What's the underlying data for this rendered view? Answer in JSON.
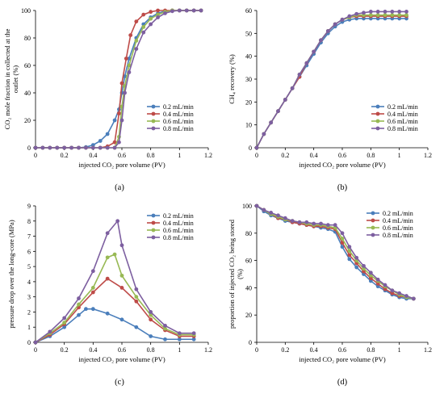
{
  "figure": {
    "background": "#ffffff"
  },
  "series_colors": [
    "#4a7ebb",
    "#be4b48",
    "#98b954",
    "#7d5fa0"
  ],
  "chart_data": [
    {
      "id": "a",
      "type": "line",
      "caption": "(a)",
      "xlabel": "injected CO₂ pore volume (PV)",
      "ylabel_lines": [
        "CO₂ mole fraction in collected at the",
        "outlet (%)"
      ],
      "xlim": [
        0,
        1.2
      ],
      "ylim": [
        0,
        100
      ],
      "xticks": [
        "0",
        "0.2",
        "0.4",
        "0.6",
        "0.8",
        "1",
        "1.2"
      ],
      "yticks": [
        "0",
        "20",
        "40",
        "60",
        "80",
        "100"
      ],
      "grid": false,
      "legend_position": "center-right",
      "series": [
        {
          "name": "0.2 mL/min",
          "x": [
            0,
            0.05,
            0.1,
            0.15,
            0.2,
            0.25,
            0.3,
            0.35,
            0.4,
            0.45,
            0.5,
            0.55,
            0.58,
            0.6,
            0.62,
            0.65,
            0.7,
            0.75,
            0.8,
            0.85,
            0.9,
            0.95,
            1.0,
            1.05,
            1.1,
            1.15
          ],
          "y": [
            0,
            0,
            0,
            0,
            0,
            0,
            0,
            0.5,
            2,
            5,
            10,
            20,
            28,
            40,
            52,
            65,
            80,
            90,
            95,
            98,
            99.5,
            100,
            100,
            100,
            100,
            100
          ]
        },
        {
          "name": "0.4 mL/min",
          "x": [
            0,
            0.05,
            0.1,
            0.15,
            0.2,
            0.25,
            0.3,
            0.35,
            0.4,
            0.45,
            0.5,
            0.55,
            0.58,
            0.6,
            0.63,
            0.66,
            0.7,
            0.75,
            0.8,
            0.85,
            0.9,
            0.95,
            1.0,
            1.05,
            1.1,
            1.15
          ],
          "y": [
            0,
            0,
            0,
            0,
            0,
            0,
            0,
            0,
            0,
            0,
            1,
            4,
            25,
            47,
            65,
            82,
            92,
            97,
            99,
            100,
            100,
            100,
            100,
            100,
            100,
            100
          ]
        },
        {
          "name": "0.6 mL/min",
          "x": [
            0,
            0.05,
            0.1,
            0.15,
            0.2,
            0.25,
            0.3,
            0.35,
            0.4,
            0.45,
            0.5,
            0.55,
            0.58,
            0.6,
            0.62,
            0.65,
            0.7,
            0.75,
            0.8,
            0.85,
            0.9,
            0.95,
            1.0,
            1.05,
            1.1,
            1.15
          ],
          "y": [
            0,
            0,
            0,
            0,
            0,
            0,
            0,
            0,
            0,
            0,
            0,
            0,
            8,
            30,
            45,
            60,
            78,
            88,
            94,
            97,
            99,
            100,
            100,
            100,
            100,
            100
          ]
        },
        {
          "name": "0.8 mL/min",
          "x": [
            0,
            0.05,
            0.1,
            0.15,
            0.2,
            0.25,
            0.3,
            0.35,
            0.4,
            0.45,
            0.5,
            0.55,
            0.58,
            0.6,
            0.62,
            0.65,
            0.7,
            0.75,
            0.8,
            0.85,
            0.9,
            0.95,
            1.0,
            1.05,
            1.1,
            1.15
          ],
          "y": [
            0,
            0,
            0,
            0,
            0,
            0,
            0,
            0,
            0,
            0,
            0,
            0,
            4,
            20,
            40,
            55,
            72,
            84,
            90,
            95,
            98,
            99.5,
            100,
            100,
            100,
            100
          ]
        }
      ]
    },
    {
      "id": "b",
      "type": "line",
      "caption": "(b)",
      "xlabel": "injected CO₂ pore volume (PV)",
      "ylabel_lines": [
        "CH₄ recovery (%)"
      ],
      "xlim": [
        0,
        1.2
      ],
      "ylim": [
        0,
        60
      ],
      "xticks": [
        "0",
        "0.2",
        "0.4",
        "0.6",
        "0.8",
        "1",
        "1.2"
      ],
      "yticks": [
        "0",
        "10",
        "20",
        "30",
        "40",
        "50",
        "60"
      ],
      "grid": false,
      "legend_position": "center-right",
      "series": [
        {
          "name": "0.2 mL/min",
          "x": [
            0,
            0.05,
            0.1,
            0.15,
            0.2,
            0.25,
            0.3,
            0.35,
            0.4,
            0.45,
            0.5,
            0.55,
            0.6,
            0.65,
            0.7,
            0.75,
            0.8,
            0.85,
            0.9,
            0.95,
            1.0,
            1.05
          ],
          "y": [
            0,
            6,
            11,
            16,
            21,
            26,
            31,
            36,
            41,
            46,
            50,
            53,
            55,
            56,
            56.5,
            56.5,
            56.5,
            56.5,
            56.5,
            56.5,
            56.5,
            56.5
          ]
        },
        {
          "name": "0.4 mL/min",
          "x": [
            0,
            0.05,
            0.1,
            0.15,
            0.2,
            0.25,
            0.3,
            0.35,
            0.4,
            0.45,
            0.5,
            0.55,
            0.6,
            0.65,
            0.7,
            0.75,
            0.8,
            0.85,
            0.9,
            0.95,
            1.0,
            1.05
          ],
          "y": [
            0,
            6,
            11,
            16,
            21,
            26,
            31,
            37,
            42,
            47,
            51,
            54,
            56,
            57,
            57.5,
            57.5,
            57.5,
            57.5,
            57.5,
            57.5,
            57.5,
            57.5
          ]
        },
        {
          "name": "0.6 mL/min",
          "x": [
            0,
            0.05,
            0.1,
            0.15,
            0.2,
            0.25,
            0.3,
            0.35,
            0.4,
            0.45,
            0.5,
            0.55,
            0.6,
            0.65,
            0.7,
            0.75,
            0.8,
            0.85,
            0.9,
            0.95,
            1.0,
            1.05
          ],
          "y": [
            0,
            6,
            11,
            16,
            21,
            26,
            32,
            37,
            42,
            47,
            51,
            54,
            56,
            57,
            58,
            58,
            58,
            58,
            58,
            58,
            58,
            58
          ]
        },
        {
          "name": "0.8 mL/min",
          "x": [
            0,
            0.05,
            0.1,
            0.15,
            0.2,
            0.25,
            0.3,
            0.35,
            0.4,
            0.45,
            0.5,
            0.55,
            0.6,
            0.65,
            0.7,
            0.75,
            0.8,
            0.85,
            0.9,
            0.95,
            1.0,
            1.05
          ],
          "y": [
            0,
            6,
            11,
            16,
            21,
            26,
            32,
            37,
            42,
            47,
            51,
            54,
            56,
            57.5,
            58.5,
            59,
            59.5,
            59.5,
            59.5,
            59.5,
            59.5,
            59.5
          ]
        }
      ]
    },
    {
      "id": "c",
      "type": "line",
      "caption": "(c)",
      "xlabel": "injected CO₂ pore volume (PV)",
      "ylabel_lines": [
        "pressure drop over the long-core (MPa)"
      ],
      "xlim": [
        0,
        1.2
      ],
      "ylim": [
        0,
        9
      ],
      "xticks": [
        "0",
        "0.2",
        "0.4",
        "0.6",
        "0.8",
        "1",
        "1.2"
      ],
      "yticks": [
        "0",
        "1",
        "2",
        "3",
        "4",
        "5",
        "6",
        "7",
        "8",
        "9"
      ],
      "grid": false,
      "legend_position": "top-right",
      "series": [
        {
          "name": "0.2 mL/min",
          "x": [
            0,
            0.1,
            0.2,
            0.3,
            0.35,
            0.4,
            0.5,
            0.6,
            0.7,
            0.8,
            0.9,
            1.0,
            1.1
          ],
          "y": [
            0,
            0.4,
            1.0,
            1.8,
            2.2,
            2.2,
            1.9,
            1.5,
            1.0,
            0.4,
            0.2,
            0.2,
            0.2
          ]
        },
        {
          "name": "0.4 mL/min",
          "x": [
            0,
            0.1,
            0.2,
            0.3,
            0.4,
            0.5,
            0.6,
            0.7,
            0.8,
            0.9,
            1.0,
            1.1
          ],
          "y": [
            0,
            0.5,
            1.2,
            2.3,
            3.3,
            4.2,
            3.6,
            2.7,
            1.5,
            0.8,
            0.4,
            0.4
          ]
        },
        {
          "name": "0.6 mL/min",
          "x": [
            0,
            0.1,
            0.2,
            0.3,
            0.4,
            0.5,
            0.55,
            0.6,
            0.7,
            0.8,
            0.9,
            1.0,
            1.1
          ],
          "y": [
            0,
            0.6,
            1.3,
            2.5,
            3.6,
            5.6,
            5.8,
            4.4,
            3.0,
            1.8,
            0.9,
            0.5,
            0.5
          ]
        },
        {
          "name": "0.8 mL/min",
          "x": [
            0,
            0.1,
            0.2,
            0.3,
            0.4,
            0.5,
            0.57,
            0.6,
            0.7,
            0.8,
            0.9,
            1.0,
            1.1
          ],
          "y": [
            0,
            0.7,
            1.6,
            2.9,
            4.7,
            7.2,
            8.0,
            6.4,
            3.5,
            2.0,
            1.1,
            0.6,
            0.6
          ]
        }
      ]
    },
    {
      "id": "d",
      "type": "line",
      "caption": "(d)",
      "xlabel": "injected CO₂ pore volume (PV)",
      "ylabel_lines": [
        "proportion of injected CO₂ being stored",
        "(%)"
      ],
      "xlim": [
        0,
        1.2
      ],
      "ylim": [
        0,
        100
      ],
      "xticks": [
        "0",
        "0.2",
        "0.4",
        "0.6",
        "0.8",
        "1",
        "1.2"
      ],
      "yticks": [
        "0",
        "20",
        "40",
        "60",
        "80",
        "100"
      ],
      "grid": false,
      "legend_position": "top-right",
      "series": [
        {
          "name": "0.2 mL/min",
          "x": [
            0,
            0.05,
            0.1,
            0.15,
            0.2,
            0.25,
            0.3,
            0.35,
            0.4,
            0.45,
            0.5,
            0.55,
            0.6,
            0.65,
            0.7,
            0.75,
            0.8,
            0.85,
            0.9,
            0.95,
            1.0,
            1.05,
            1.1
          ],
          "y": [
            100,
            96,
            93,
            91,
            89,
            88,
            87,
            86,
            85,
            84,
            83,
            81,
            70,
            61,
            55,
            50,
            45,
            41,
            38,
            35,
            33,
            32,
            32
          ]
        },
        {
          "name": "0.4 mL/min",
          "x": [
            0,
            0.05,
            0.1,
            0.15,
            0.2,
            0.25,
            0.3,
            0.35,
            0.4,
            0.45,
            0.5,
            0.55,
            0.6,
            0.65,
            0.7,
            0.75,
            0.8,
            0.85,
            0.9,
            0.95,
            1.0,
            1.05,
            1.1
          ],
          "y": [
            100,
            97,
            94,
            91,
            90,
            88,
            87,
            86,
            85,
            85,
            84,
            83,
            73,
            64,
            58,
            52,
            47,
            43,
            39,
            36,
            34,
            33,
            32
          ]
        },
        {
          "name": "0.6 mL/min",
          "x": [
            0,
            0.05,
            0.1,
            0.15,
            0.2,
            0.25,
            0.3,
            0.35,
            0.4,
            0.45,
            0.5,
            0.55,
            0.6,
            0.65,
            0.7,
            0.75,
            0.8,
            0.85,
            0.9,
            0.95,
            1.0,
            1.05,
            1.1
          ],
          "y": [
            100,
            97,
            94,
            92,
            90,
            89,
            88,
            87,
            86,
            86,
            85,
            84,
            76,
            67,
            60,
            54,
            49,
            45,
            41,
            38,
            35,
            33,
            32
          ]
        },
        {
          "name": "0.8 mL/min",
          "x": [
            0,
            0.05,
            0.1,
            0.15,
            0.2,
            0.25,
            0.3,
            0.35,
            0.4,
            0.45,
            0.5,
            0.55,
            0.6,
            0.65,
            0.7,
            0.75,
            0.8,
            0.85,
            0.9,
            0.95,
            1.0,
            1.05,
            1.1
          ],
          "y": [
            100,
            97,
            95,
            93,
            91,
            89,
            88,
            88,
            87,
            87,
            86,
            86,
            80,
            70,
            62,
            56,
            51,
            46,
            42,
            38,
            36,
            34,
            32
          ]
        }
      ]
    }
  ]
}
